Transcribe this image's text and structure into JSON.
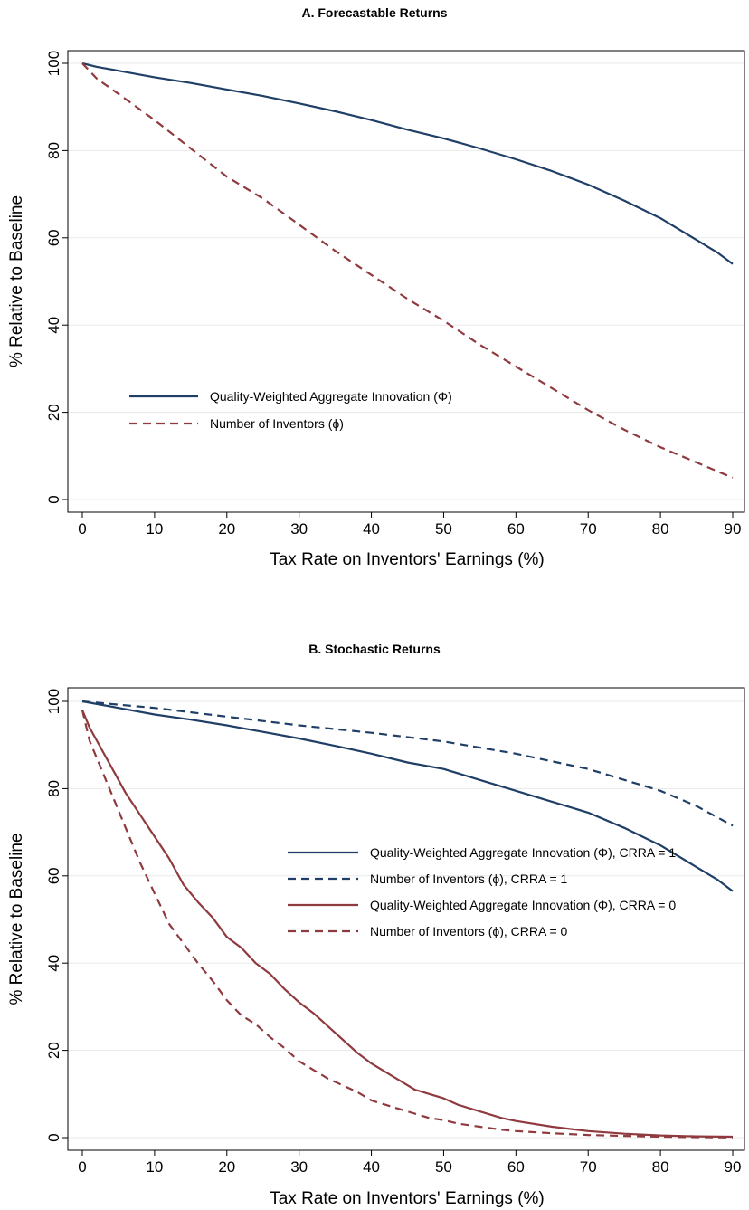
{
  "chart_data": [
    {
      "type": "line",
      "title": "A. Forecastable Returns",
      "xlabel": "Tax Rate on Inventors' Earnings (%)",
      "ylabel": "% Relative to Baseline",
      "xlim": [
        0,
        90
      ],
      "ylim": [
        0,
        100
      ],
      "xticks": [
        0,
        10,
        20,
        30,
        40,
        50,
        60,
        70,
        80,
        90
      ],
      "yticks": [
        0,
        20,
        40,
        60,
        80,
        100
      ],
      "grid": "horizontal",
      "legend_position": "lower-left",
      "series": [
        {
          "name": "Quality-Weighted Aggregate Innovation (Φ)",
          "color": "#1f3f66",
          "style": "solid",
          "x": [
            0,
            2,
            5,
            10,
            15,
            20,
            25,
            30,
            35,
            40,
            45,
            50,
            55,
            60,
            65,
            70,
            75,
            80,
            85,
            88,
            90
          ],
          "y": [
            100,
            99.2,
            98.3,
            96.8,
            95.5,
            94,
            92.5,
            90.8,
            89,
            87,
            84.8,
            82.8,
            80.5,
            78,
            75.3,
            72.2,
            68.5,
            64.5,
            59.5,
            56.5,
            54
          ]
        },
        {
          "name": "Number of Inventors (ϕ)",
          "color": "#8f3a3f",
          "style": "dashed",
          "x": [
            0,
            2,
            5,
            10,
            15,
            20,
            25,
            30,
            35,
            40,
            45,
            50,
            55,
            60,
            65,
            70,
            75,
            80,
            85,
            90
          ],
          "y": [
            100,
            96.5,
            93,
            87,
            80.5,
            74,
            69,
            63,
            57,
            51.5,
            46,
            41,
            35.5,
            30.5,
            25.5,
            20.5,
            16,
            12,
            8.5,
            5
          ]
        }
      ]
    },
    {
      "type": "line",
      "title": "B. Stochastic Returns",
      "xlabel": "Tax Rate on Inventors' Earnings (%)",
      "ylabel": "% Relative to Baseline",
      "xlim": [
        0,
        90
      ],
      "ylim": [
        0,
        100
      ],
      "xticks": [
        0,
        10,
        20,
        30,
        40,
        50,
        60,
        70,
        80,
        90
      ],
      "yticks": [
        0,
        20,
        40,
        60,
        80,
        100
      ],
      "grid": "horizontal",
      "legend_position": "right",
      "series": [
        {
          "name": "Quality-Weighted Aggregate Innovation (Φ), CRRA = 1",
          "color": "#1f3f66",
          "style": "solid",
          "x": [
            0,
            5,
            10,
            15,
            20,
            25,
            30,
            35,
            40,
            45,
            50,
            55,
            60,
            65,
            70,
            75,
            80,
            85,
            88,
            90
          ],
          "y": [
            100,
            98.5,
            97,
            95.8,
            94.5,
            93,
            91.5,
            89.8,
            88,
            86,
            84.5,
            82,
            79.5,
            77,
            74.5,
            71,
            67,
            62,
            59,
            56.5
          ]
        },
        {
          "name": "Number of Inventors (ϕ), CRRA = 1",
          "color": "#1f3f66",
          "style": "dashed",
          "x": [
            0,
            10,
            20,
            30,
            40,
            50,
            60,
            70,
            80,
            85,
            90
          ],
          "y": [
            100,
            98.5,
            96.5,
            94.5,
            92.8,
            90.8,
            88,
            84.5,
            79.5,
            76,
            71.5
          ]
        },
        {
          "name": "Quality-Weighted Aggregate Innovation (Φ), CRRA = 0",
          "color": "#8f3a3f",
          "style": "solid",
          "x": [
            0,
            1,
            2,
            4,
            6,
            8,
            10,
            12,
            14,
            16,
            18,
            20,
            22,
            24,
            26,
            28,
            30,
            32,
            34,
            36,
            38,
            40,
            42,
            44,
            46,
            48,
            50,
            52,
            55,
            58,
            60,
            65,
            70,
            75,
            80,
            85,
            90
          ],
          "y": [
            98,
            94,
            91,
            85,
            79,
            74,
            69,
            64,
            58,
            54,
            50.5,
            46,
            43.5,
            40,
            37.5,
            34,
            31,
            28.5,
            25.5,
            22.5,
            19.5,
            17,
            15,
            13,
            11,
            10,
            9,
            7.5,
            6,
            4.5,
            3.8,
            2.5,
            1.5,
            0.9,
            0.5,
            0.3,
            0.2
          ]
        },
        {
          "name": "Number of Inventors (ϕ), CRRA = 0",
          "color": "#8f3a3f",
          "style": "dashed",
          "x": [
            0,
            1,
            2,
            4,
            6,
            8,
            10,
            12,
            14,
            16,
            18,
            20,
            22,
            24,
            26,
            28,
            30,
            32,
            34,
            36,
            38,
            40,
            42,
            44,
            46,
            48,
            50,
            52,
            55,
            58,
            60,
            65,
            70,
            75,
            80,
            85,
            90
          ],
          "y": [
            98,
            91,
            87,
            79,
            71,
            63,
            56,
            49,
            44.5,
            40,
            36,
            31.5,
            28,
            26,
            23,
            20.5,
            17.5,
            15.5,
            13.5,
            12,
            10.5,
            8.5,
            7.5,
            6.5,
            5.5,
            4.5,
            4,
            3.2,
            2.5,
            1.8,
            1.5,
            1,
            0.6,
            0.4,
            0.2,
            0.1,
            0.05
          ]
        }
      ]
    }
  ]
}
